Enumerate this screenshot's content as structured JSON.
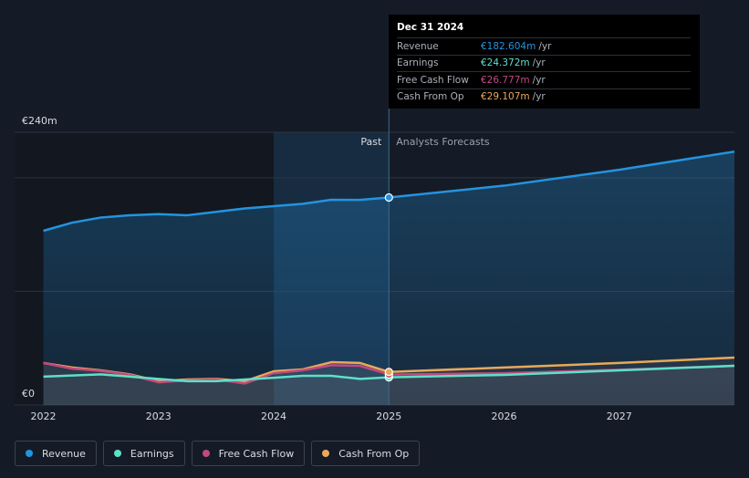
{
  "chart_data": {
    "type": "line",
    "x": [
      2022,
      2022.25,
      2022.5,
      2022.75,
      2023,
      2023.25,
      2023.5,
      2023.75,
      2024,
      2024.25,
      2024.5,
      2024.75,
      2025,
      2026,
      2027,
      2028
    ],
    "series": [
      {
        "name": "Revenue",
        "color": "#2394df",
        "values": [
          153.3,
          160.5,
          165,
          167,
          168,
          167,
          170,
          173,
          175,
          177,
          180.6,
          180.5,
          182.6,
          193,
          207,
          223
        ]
      },
      {
        "name": "Earnings",
        "color": "#5de0c8",
        "values": [
          25,
          26,
          27,
          25,
          23,
          21,
          21,
          22.5,
          24,
          25.7,
          25.7,
          23,
          24.4,
          26.5,
          30.5,
          34.5
        ]
      },
      {
        "name": "Free Cash Flow",
        "color": "#c2497e",
        "values": [
          37,
          32,
          30,
          26.5,
          20,
          21.7,
          22.5,
          19,
          28,
          30.5,
          35,
          34.5,
          26.8,
          28,
          31,
          34.5
        ]
      },
      {
        "name": "Cash From Op",
        "color": "#e8a95a",
        "values": [
          37,
          33,
          30.5,
          27,
          21,
          22.5,
          23,
          21,
          29.7,
          31.3,
          37.7,
          37,
          29.1,
          33,
          37,
          41.7
        ]
      }
    ],
    "xlim": [
      2021.75,
      2028
    ],
    "xticks": [
      2022,
      2023,
      2024,
      2025,
      2026,
      2027
    ],
    "ylim": [
      0,
      240
    ],
    "yticks": [
      {
        "value": 0,
        "label": "€0"
      },
      {
        "value": 100,
        "label": null
      },
      {
        "value": 200,
        "label": null
      },
      {
        "value": 240,
        "label": "€240m"
      }
    ],
    "grid": true,
    "past_label": "Past",
    "forecast_label": "Analysts Forecasts",
    "tooltip": {
      "date": "Dec 31 2024",
      "rows": [
        {
          "label": "Revenue",
          "value": "€182.604m",
          "unit": "/yr"
        },
        {
          "label": "Earnings",
          "value": "€24.372m",
          "unit": "/yr"
        },
        {
          "label": "Free Cash Flow",
          "value": "€26.777m",
          "unit": "/yr"
        },
        {
          "label": "Cash From Op",
          "value": "€29.107m",
          "unit": "/yr"
        }
      ]
    }
  }
}
